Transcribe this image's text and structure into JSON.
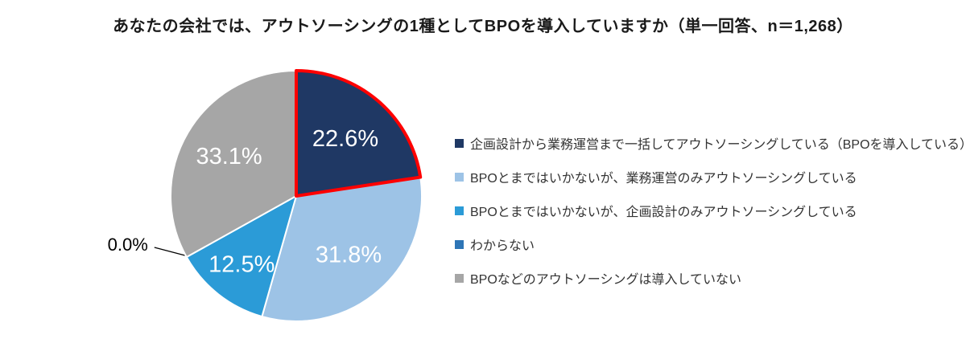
{
  "chart_data": {
    "type": "pie",
    "title": "あなたの会社では、アウトソーシングの1種としてBPOを導入していますか（単一回答、n＝1,268）",
    "sample_n": 1268,
    "categories": [
      "企画設計から業務運営まで一括してアウトソーシングしている（BPOを導入している）",
      "BPOとまではいかないが、業務運営のみアウトソーシングしている",
      "BPOとまではいかないが、企画設計のみアウトソーシングしている",
      "わからない",
      "BPOなどのアウトソーシングは導入していない"
    ],
    "values": [
      22.6,
      31.8,
      12.5,
      0.0,
      33.1
    ],
    "value_labels": [
      "22.6%",
      "31.8%",
      "12.5%",
      "0.0%",
      "33.1%"
    ],
    "colors": [
      "#1F3864",
      "#9DC3E6",
      "#2B9BD7",
      "#2E75B6",
      "#A6A6A6"
    ],
    "highlight": {
      "index": 0,
      "color": "#FF0000"
    },
    "start_angle_deg": -90,
    "direction": "clockwise",
    "legend_position": "right",
    "label_color_inside": "#ffffff",
    "label_color_outside": "#000000"
  }
}
